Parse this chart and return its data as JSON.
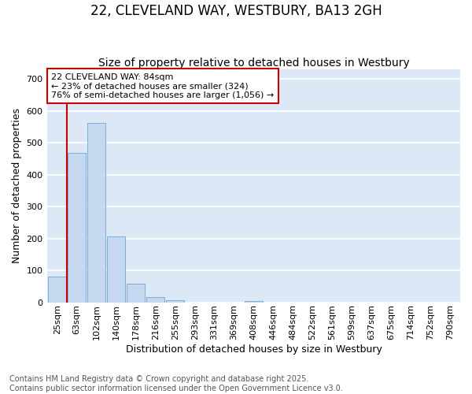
{
  "title": "22, CLEVELAND WAY, WESTBURY, BA13 2GH",
  "subtitle": "Size of property relative to detached houses in Westbury",
  "xlabel": "Distribution of detached houses by size in Westbury",
  "ylabel": "Number of detached properties",
  "categories": [
    "25sqm",
    "63sqm",
    "102sqm",
    "140sqm",
    "178sqm",
    "216sqm",
    "255sqm",
    "293sqm",
    "331sqm",
    "369sqm",
    "408sqm",
    "446sqm",
    "484sqm",
    "522sqm",
    "561sqm",
    "599sqm",
    "637sqm",
    "675sqm",
    "714sqm",
    "752sqm",
    "790sqm"
  ],
  "values": [
    80,
    468,
    562,
    207,
    57,
    16,
    6,
    0,
    0,
    0,
    4,
    0,
    0,
    0,
    0,
    0,
    0,
    0,
    0,
    0,
    0
  ],
  "bar_color": "#c5d8f0",
  "bar_edge_color": "#7bafd4",
  "vline_x": 0.5,
  "vline_color": "#cc0000",
  "annotation_text": "22 CLEVELAND WAY: 84sqm\n← 23% of detached houses are smaller (324)\n76% of semi-detached houses are larger (1,056) →",
  "annotation_box_color": "#ffffff",
  "annotation_box_edge": "#cc0000",
  "ylim": [
    0,
    730
  ],
  "yticks": [
    0,
    100,
    200,
    300,
    400,
    500,
    600,
    700
  ],
  "fig_bg_color": "#ffffff",
  "ax_bg_color": "#dce8f5",
  "grid_color": "#ffffff",
  "footer": "Contains HM Land Registry data © Crown copyright and database right 2025.\nContains public sector information licensed under the Open Government Licence v3.0.",
  "title_fontsize": 12,
  "subtitle_fontsize": 10,
  "axis_label_fontsize": 9,
  "tick_fontsize": 8,
  "annotation_fontsize": 8,
  "footer_fontsize": 7,
  "ylabel_fontsize": 9
}
